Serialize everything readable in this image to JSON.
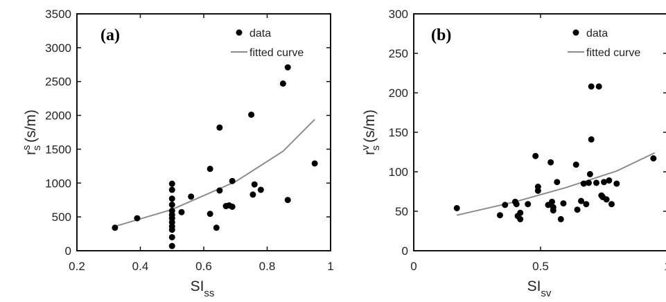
{
  "chart_data": [
    {
      "type": "scatter",
      "panel_label": "(a)",
      "xlabel_main": "SI",
      "xlabel_sub": "ss",
      "ylabel_main": "r",
      "ylabel_sub": "s",
      "ylabel_sup": "s",
      "ylabel_unit": "(s/m)",
      "xlim": [
        0.2,
        1
      ],
      "ylim": [
        0,
        3500
      ],
      "xticks": [
        "0.2",
        "0.4",
        "0.6",
        "0.8",
        "1"
      ],
      "yticks": [
        "0",
        "500",
        "1000",
        "1500",
        "2000",
        "2500",
        "3000",
        "3500"
      ],
      "legend": [
        "data",
        "fitted curve"
      ],
      "legend_position": "top-right",
      "series": [
        {
          "name": "data",
          "points": [
            [
              0.32,
              340
            ],
            [
              0.39,
              480
            ],
            [
              0.5,
              70
            ],
            [
              0.5,
              200
            ],
            [
              0.5,
              310
            ],
            [
              0.5,
              360
            ],
            [
              0.5,
              420
            ],
            [
              0.5,
              480
            ],
            [
              0.5,
              530
            ],
            [
              0.5,
              590
            ],
            [
              0.5,
              680
            ],
            [
              0.5,
              770
            ],
            [
              0.5,
              900
            ],
            [
              0.5,
              990
            ],
            [
              0.53,
              570
            ],
            [
              0.56,
              800
            ],
            [
              0.62,
              1210
            ],
            [
              0.62,
              545
            ],
            [
              0.64,
              340
            ],
            [
              0.65,
              1820
            ],
            [
              0.65,
              890
            ],
            [
              0.67,
              660
            ],
            [
              0.68,
              670
            ],
            [
              0.69,
              1030
            ],
            [
              0.69,
              650
            ],
            [
              0.75,
              2010
            ],
            [
              0.755,
              830
            ],
            [
              0.76,
              980
            ],
            [
              0.78,
              900
            ],
            [
              0.85,
              2470
            ],
            [
              0.865,
              2710
            ],
            [
              0.865,
              750
            ],
            [
              0.95,
              1290
            ]
          ]
        },
        {
          "name": "fitted curve",
          "points": [
            [
              0.32,
              360
            ],
            [
              0.5,
              610
            ],
            [
              0.7,
              1020
            ],
            [
              0.85,
              1470
            ],
            [
              0.95,
              1940
            ]
          ]
        }
      ]
    },
    {
      "type": "scatter",
      "panel_label": "(b)",
      "xlabel_main": "SI",
      "xlabel_sub": "sv",
      "ylabel_main": "r",
      "ylabel_sub": "s",
      "ylabel_sup": "v",
      "ylabel_unit": "(s/m)",
      "xlim": [
        0,
        1
      ],
      "ylim": [
        0,
        300
      ],
      "xticks": [
        "0",
        "0.5",
        "1"
      ],
      "yticks": [
        "0",
        "50",
        "100",
        "150",
        "200",
        "250",
        "300"
      ],
      "legend": [
        "data",
        "fitted curve"
      ],
      "legend_position": "top-right",
      "series": [
        {
          "name": "data",
          "points": [
            [
              0.17,
              54
            ],
            [
              0.34,
              45
            ],
            [
              0.36,
              58
            ],
            [
              0.4,
              62
            ],
            [
              0.405,
              59
            ],
            [
              0.41,
              44
            ],
            [
              0.42,
              40
            ],
            [
              0.42,
              48
            ],
            [
              0.45,
              59
            ],
            [
              0.48,
              120
            ],
            [
              0.49,
              81
            ],
            [
              0.49,
              76
            ],
            [
              0.53,
              58
            ],
            [
              0.54,
              112
            ],
            [
              0.545,
              62
            ],
            [
              0.55,
              55
            ],
            [
              0.55,
              51
            ],
            [
              0.565,
              87
            ],
            [
              0.58,
              40
            ],
            [
              0.59,
              60
            ],
            [
              0.64,
              109
            ],
            [
              0.645,
              52
            ],
            [
              0.66,
              63
            ],
            [
              0.67,
              85
            ],
            [
              0.68,
              59
            ],
            [
              0.69,
              86
            ],
            [
              0.695,
              97
            ],
            [
              0.7,
              141
            ],
            [
              0.7,
              208
            ],
            [
              0.72,
              86
            ],
            [
              0.73,
              208
            ],
            [
              0.74,
              70
            ],
            [
              0.745,
              68
            ],
            [
              0.75,
              87
            ],
            [
              0.76,
              65
            ],
            [
              0.77,
              89
            ],
            [
              0.78,
              59
            ],
            [
              0.8,
              85
            ],
            [
              0.945,
              117
            ]
          ]
        },
        {
          "name": "fitted curve",
          "points": [
            [
              0.17,
              45
            ],
            [
              0.4,
              62
            ],
            [
              0.6,
              80
            ],
            [
              0.8,
              101
            ],
            [
              0.95,
              124
            ]
          ]
        }
      ]
    }
  ]
}
